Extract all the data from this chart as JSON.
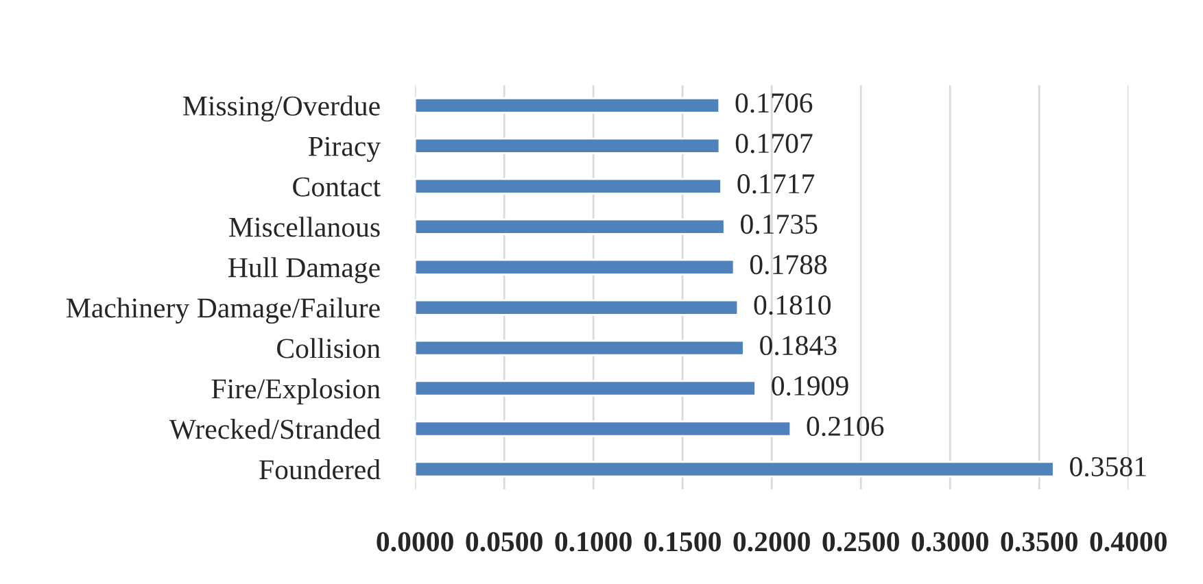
{
  "chart_data": {
    "type": "bar",
    "orientation": "horizontal",
    "categories": [
      "Missing/Overdue",
      "Piracy",
      "Contact",
      "Miscellanous",
      "Hull Damage",
      "Machinery Damage/Failure",
      "Collision",
      "Fire/Explosion",
      "Wrecked/Stranded",
      "Foundered"
    ],
    "values": [
      0.1706,
      0.1707,
      0.1717,
      0.1735,
      0.1788,
      0.181,
      0.1843,
      0.1909,
      0.2106,
      0.3581
    ],
    "value_labels": [
      "0.1706",
      "0.1707",
      "0.1717",
      "0.1735",
      "0.1788",
      "0.1810",
      "0.1843",
      "0.1909",
      "0.2106",
      "0.3581"
    ],
    "color": "#4f81bd",
    "xlim": [
      0,
      0.4
    ],
    "xticks": [
      {
        "value": 0,
        "label": "0.0000"
      },
      {
        "value": 0.05,
        "label": "0.0500"
      },
      {
        "value": 0.1,
        "label": "0.1000"
      },
      {
        "value": 0.15,
        "label": "0.1500"
      },
      {
        "value": 0.2,
        "label": "0.2000"
      },
      {
        "value": 0.25,
        "label": "0.2500"
      },
      {
        "value": 0.3,
        "label": "0.3000"
      },
      {
        "value": 0.35,
        "label": "0.3500"
      },
      {
        "value": 0.4,
        "label": "0.4000"
      }
    ],
    "grid": "x",
    "legend": false
  }
}
